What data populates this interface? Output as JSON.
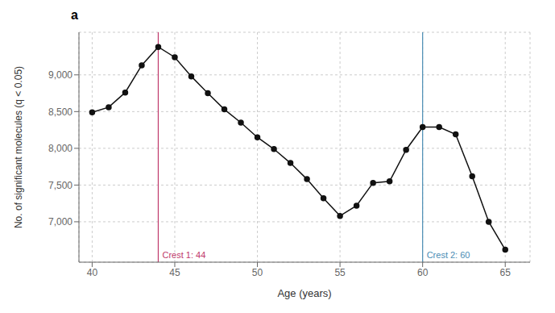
{
  "chart_data": {
    "type": "line",
    "title": "a",
    "xlabel": "Age (years)",
    "ylabel": "No. of significant molecules (q < 0.05)",
    "x": [
      40,
      41,
      42,
      43,
      44,
      45,
      46,
      47,
      48,
      49,
      50,
      51,
      52,
      53,
      54,
      55,
      56,
      57,
      58,
      59,
      60,
      61,
      62,
      63,
      64,
      65
    ],
    "values": [
      8490,
      8560,
      8760,
      9130,
      9380,
      9240,
      8980,
      8750,
      8530,
      8350,
      8150,
      7990,
      7800,
      7580,
      7320,
      7080,
      7220,
      7530,
      7550,
      7980,
      8290,
      8290,
      8190,
      7620,
      7000,
      6620
    ],
    "color": "#111111",
    "marker": "o",
    "xlim": [
      39.2,
      66.5
    ],
    "ylim": [
      6450,
      9580
    ],
    "xticks": [
      40,
      45,
      50,
      55,
      60,
      65
    ],
    "yticks": [
      {
        "value": 7000,
        "label": "7,000"
      },
      {
        "value": 7500,
        "label": "7,500"
      },
      {
        "value": 8000,
        "label": "8,000"
      },
      {
        "value": 8500,
        "label": "8,500"
      },
      {
        "value": 9000,
        "label": "9,000"
      }
    ],
    "grid": true,
    "annotations": [
      {
        "x": 44,
        "label": "Crest 1: 44",
        "color": "#c0396b"
      },
      {
        "x": 60,
        "label": "Crest 2: 60",
        "color": "#4a8db5"
      }
    ]
  }
}
